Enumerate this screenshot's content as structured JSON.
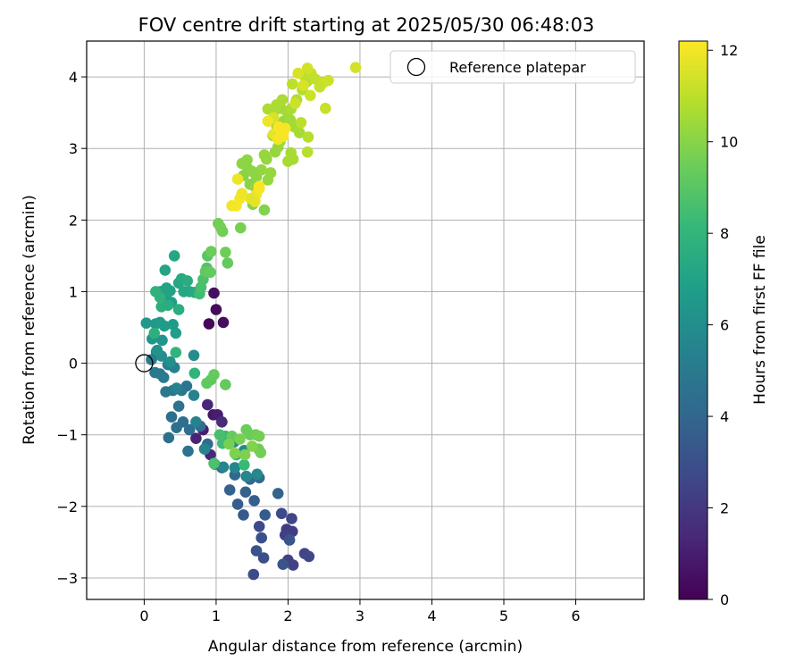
{
  "chart_data": {
    "type": "scatter",
    "title": "FOV centre drift starting at 2025/05/30 06:48:03",
    "xlabel": "Angular distance from reference (arcmin)",
    "ylabel": "Rotation from reference (arcmin)",
    "xlim": [
      -0.8,
      6.95
    ],
    "ylim": [
      -3.3,
      4.5
    ],
    "xticks": [
      0,
      1,
      2,
      3,
      4,
      5,
      6
    ],
    "yticks": [
      -3,
      -2,
      -1,
      0,
      1,
      2,
      3,
      4
    ],
    "grid": true,
    "legend": {
      "placement": "upper-right",
      "entries": [
        "Reference platepar"
      ]
    },
    "reference_point": {
      "x": 0,
      "y": 0
    },
    "colorbar": {
      "label": "Hours from first FF file",
      "colormap": "viridis",
      "min": 0,
      "max": 12.2,
      "ticks": [
        0,
        2,
        4,
        6,
        8,
        10,
        12
      ]
    },
    "points": [
      [
        0.9,
        0.55,
        0.2
      ],
      [
        1.0,
        0.75,
        0.3
      ],
      [
        1.1,
        0.57,
        0.4
      ],
      [
        0.97,
        0.98,
        0.5
      ],
      [
        0.96,
        -0.72,
        0.8
      ],
      [
        0.82,
        -0.93,
        1.0
      ],
      [
        1.02,
        -0.72,
        1.0
      ],
      [
        0.72,
        -1.05,
        1.2
      ],
      [
        0.88,
        -0.58,
        1.3
      ],
      [
        1.08,
        -0.82,
        1.5
      ],
      [
        0.92,
        -1.28,
        1.4
      ],
      [
        1.98,
        -2.32,
        2.1
      ],
      [
        2.06,
        -2.35,
        2.2
      ],
      [
        2.0,
        -2.75,
        2.3
      ],
      [
        1.96,
        -2.4,
        2.3
      ],
      [
        2.07,
        -2.82,
        2.4
      ],
      [
        2.23,
        -2.66,
        2.5
      ],
      [
        2.05,
        -2.17,
        2.5
      ],
      [
        2.29,
        -2.7,
        2.6
      ],
      [
        1.91,
        -2.1,
        2.7
      ],
      [
        1.6,
        -2.28,
        2.7
      ],
      [
        1.52,
        -2.95,
        2.8
      ],
      [
        1.66,
        -2.72,
        2.9
      ],
      [
        1.63,
        -2.44,
        3.0
      ],
      [
        1.56,
        -2.62,
        3.1
      ],
      [
        1.93,
        -2.81,
        3.1
      ],
      [
        2.02,
        -2.47,
        3.2
      ],
      [
        1.38,
        -2.12,
        3.4
      ],
      [
        1.68,
        -2.12,
        3.5
      ],
      [
        1.3,
        -1.97,
        3.6
      ],
      [
        1.53,
        -1.92,
        3.6
      ],
      [
        1.19,
        -1.77,
        3.8
      ],
      [
        1.41,
        -1.8,
        3.8
      ],
      [
        1.86,
        -1.82,
        3.9
      ],
      [
        1.08,
        -1.46,
        4.0
      ],
      [
        1.26,
        -1.56,
        4.1
      ],
      [
        1.47,
        -1.62,
        4.1
      ],
      [
        1.6,
        -1.6,
        4.2
      ],
      [
        0.98,
        -1.41,
        4.2
      ],
      [
        0.88,
        -1.13,
        4.3
      ],
      [
        0.78,
        -0.88,
        4.3
      ],
      [
        0.63,
        -0.93,
        4.4
      ],
      [
        0.54,
        -0.82,
        4.4
      ],
      [
        0.45,
        -0.9,
        4.5
      ],
      [
        0.38,
        -0.75,
        4.5
      ],
      [
        0.34,
        -1.04,
        4.5
      ],
      [
        0.61,
        -1.23,
        4.6
      ],
      [
        0.48,
        -0.6,
        4.6
      ],
      [
        0.4,
        -0.38,
        4.7
      ],
      [
        0.59,
        -0.32,
        4.8
      ],
      [
        0.52,
        -0.38,
        4.8
      ],
      [
        0.3,
        -0.4,
        4.9
      ],
      [
        0.22,
        -0.15,
        4.9
      ],
      [
        0.15,
        -0.13,
        5.0
      ],
      [
        0.27,
        -0.2,
        5.0
      ],
      [
        0.1,
        0.05,
        5.1
      ],
      [
        0.17,
        0.16,
        5.1
      ],
      [
        0.33,
        -0.02,
        5.2
      ],
      [
        0.42,
        -0.06,
        5.3
      ],
      [
        0.45,
        -0.35,
        5.3
      ],
      [
        0.69,
        -0.45,
        5.4
      ],
      [
        0.72,
        -0.82,
        5.4
      ],
      [
        0.84,
        -1.2,
        5.5
      ],
      [
        1.1,
        -1.45,
        5.5
      ],
      [
        1.26,
        -1.46,
        5.6
      ],
      [
        1.42,
        -1.58,
        5.6
      ],
      [
        1.57,
        -1.55,
        5.7
      ],
      [
        1.25,
        -1.1,
        5.8
      ],
      [
        1.39,
        -1.22,
        5.8
      ],
      [
        0.69,
        0.11,
        5.9
      ],
      [
        0.24,
        0.1,
        6.0
      ],
      [
        0.36,
        0.02,
        6.1
      ],
      [
        0.18,
        0.18,
        6.2
      ],
      [
        0.25,
        0.32,
        6.3
      ],
      [
        0.11,
        0.34,
        6.4
      ],
      [
        0.03,
        0.56,
        6.5
      ],
      [
        0.16,
        0.55,
        6.5
      ],
      [
        0.22,
        0.57,
        6.6
      ],
      [
        0.28,
        0.52,
        6.7
      ],
      [
        0.4,
        0.54,
        6.7
      ],
      [
        0.44,
        0.42,
        6.8
      ],
      [
        0.38,
        0.85,
        6.8
      ],
      [
        0.3,
        0.93,
        6.9
      ],
      [
        0.23,
        1.0,
        6.9
      ],
      [
        0.31,
        1.05,
        7.0
      ],
      [
        0.36,
        1.01,
        7.0
      ],
      [
        0.29,
        1.3,
        7.1
      ],
      [
        0.42,
        1.5,
        7.2
      ],
      [
        0.48,
        1.12,
        7.2
      ],
      [
        0.55,
        1.0,
        7.3
      ],
      [
        0.63,
        1.0,
        7.3
      ],
      [
        0.7,
        0.99,
        7.4
      ],
      [
        0.52,
        1.18,
        7.4
      ],
      [
        0.6,
        1.15,
        7.5
      ],
      [
        0.33,
        0.81,
        7.5
      ],
      [
        0.24,
        0.79,
        7.6
      ],
      [
        0.48,
        0.75,
        7.6
      ],
      [
        0.14,
        0.42,
        7.7
      ],
      [
        0.22,
        0.92,
        7.8
      ],
      [
        0.16,
        1.0,
        7.8
      ],
      [
        0.44,
        0.15,
        7.9
      ],
      [
        0.7,
        -0.14,
        7.9
      ],
      [
        1.13,
        -1.02,
        8.0
      ],
      [
        1.28,
        -1.28,
        8.0
      ],
      [
        1.39,
        -1.42,
        8.2
      ],
      [
        1.09,
        -1.12,
        8.4
      ],
      [
        1.05,
        -1.0,
        8.6
      ],
      [
        0.97,
        -1.4,
        8.7
      ],
      [
        0.77,
        0.97,
        8.4
      ],
      [
        0.79,
        1.06,
        8.6
      ],
      [
        0.82,
        1.17,
        8.7
      ],
      [
        0.87,
        1.33,
        8.8
      ],
      [
        0.88,
        1.5,
        9.0
      ],
      [
        0.85,
        1.28,
        9.2
      ],
      [
        0.92,
        1.27,
        9.3
      ],
      [
        1.16,
        1.4,
        9.3
      ],
      [
        1.13,
        1.55,
        9.5
      ],
      [
        0.93,
        1.56,
        9.4
      ],
      [
        1.03,
        1.95,
        9.6
      ],
      [
        1.06,
        1.9,
        9.6
      ],
      [
        1.09,
        1.84,
        9.6
      ],
      [
        1.34,
        1.89,
        9.7
      ],
      [
        0.87,
        -0.28,
        9.2
      ],
      [
        0.93,
        -0.23,
        9.2
      ],
      [
        0.97,
        -0.16,
        9.3
      ],
      [
        1.13,
        -0.3,
        9.3
      ],
      [
        1.22,
        -1.02,
        9.3
      ],
      [
        1.42,
        -0.93,
        9.4
      ],
      [
        1.47,
        -1.0,
        9.4
      ],
      [
        1.55,
        -1.0,
        9.5
      ],
      [
        1.59,
        -1.2,
        9.5
      ],
      [
        1.62,
        -1.25,
        9.6
      ],
      [
        1.6,
        -1.02,
        9.6
      ],
      [
        1.33,
        -1.06,
        9.7
      ],
      [
        1.18,
        -1.13,
        9.7
      ],
      [
        1.26,
        -1.26,
        9.8
      ],
      [
        1.4,
        -1.28,
        9.8
      ],
      [
        1.5,
        -1.16,
        9.9
      ],
      [
        1.67,
        2.14,
        9.9
      ],
      [
        1.51,
        2.22,
        9.9
      ],
      [
        1.47,
        2.5,
        10.0
      ],
      [
        1.38,
        2.62,
        10.0
      ],
      [
        1.44,
        2.72,
        10.0
      ],
      [
        1.5,
        2.68,
        10.1
      ],
      [
        1.36,
        2.79,
        10.1
      ],
      [
        1.43,
        2.84,
        10.1
      ],
      [
        1.56,
        2.6,
        10.1
      ],
      [
        1.55,
        2.45,
        10.2
      ],
      [
        1.63,
        2.7,
        10.2
      ],
      [
        1.7,
        2.85,
        10.2
      ],
      [
        1.76,
        2.66,
        10.3
      ],
      [
        1.82,
        2.95,
        10.3
      ],
      [
        1.86,
        3.02,
        10.3
      ],
      [
        1.67,
        2.91,
        10.3
      ],
      [
        1.72,
        2.56,
        10.3
      ],
      [
        1.79,
        3.18,
        10.4
      ],
      [
        1.89,
        3.1,
        10.4
      ],
      [
        1.94,
        3.38,
        10.4
      ],
      [
        1.84,
        3.32,
        10.5
      ],
      [
        1.9,
        3.56,
        10.5
      ],
      [
        1.98,
        3.52,
        10.5
      ],
      [
        2.03,
        3.4,
        10.5
      ],
      [
        2.09,
        3.3,
        10.5
      ],
      [
        2.16,
        3.22,
        10.6
      ],
      [
        2.04,
        2.94,
        10.6
      ],
      [
        2.0,
        2.82,
        10.6
      ],
      [
        2.07,
        2.85,
        10.6
      ],
      [
        1.8,
        3.5,
        10.6
      ],
      [
        1.72,
        3.55,
        10.7
      ],
      [
        1.84,
        3.61,
        10.7
      ],
      [
        1.92,
        3.68,
        10.7
      ],
      [
        2.04,
        3.55,
        10.7
      ],
      [
        2.12,
        3.68,
        10.8
      ],
      [
        2.2,
        3.82,
        10.8
      ],
      [
        2.26,
        3.93,
        10.9
      ],
      [
        2.28,
        3.16,
        10.9
      ],
      [
        2.27,
        2.95,
        10.9
      ],
      [
        2.18,
        3.36,
        11.0
      ],
      [
        2.06,
        3.9,
        11.0
      ],
      [
        2.22,
        4.02,
        11.0
      ],
      [
        2.32,
        4.05,
        11.1
      ],
      [
        2.38,
        3.97,
        11.1
      ],
      [
        2.44,
        3.86,
        11.2
      ],
      [
        2.49,
        3.92,
        11.2
      ],
      [
        2.52,
        3.56,
        11.2
      ],
      [
        2.56,
        3.95,
        11.3
      ],
      [
        2.1,
        3.63,
        11.3
      ],
      [
        2.31,
        3.74,
        11.3
      ],
      [
        2.27,
        4.12,
        11.4
      ],
      [
        2.14,
        4.05,
        11.5
      ],
      [
        2.94,
        4.13,
        11.4
      ],
      [
        2.21,
        3.88,
        11.5
      ],
      [
        1.8,
        3.43,
        11.5
      ],
      [
        1.8,
        3.2,
        11.8
      ],
      [
        1.9,
        3.24,
        12.0
      ],
      [
        1.93,
        3.17,
        12.1
      ],
      [
        1.96,
        3.28,
        12.1
      ],
      [
        1.87,
        3.3,
        12.1
      ],
      [
        1.72,
        3.38,
        11.9
      ],
      [
        1.86,
        3.13,
        12.0
      ],
      [
        1.56,
        2.36,
        11.9
      ],
      [
        1.6,
        2.44,
        12.0
      ],
      [
        1.54,
        2.26,
        11.8
      ],
      [
        1.48,
        2.3,
        11.7
      ],
      [
        1.33,
        2.3,
        12.0
      ],
      [
        1.28,
        2.2,
        12.1
      ],
      [
        1.36,
        2.37,
        11.9
      ],
      [
        1.22,
        2.2,
        12.0
      ],
      [
        1.6,
        2.47,
        12.1
      ],
      [
        1.3,
        2.57,
        11.9
      ]
    ]
  }
}
